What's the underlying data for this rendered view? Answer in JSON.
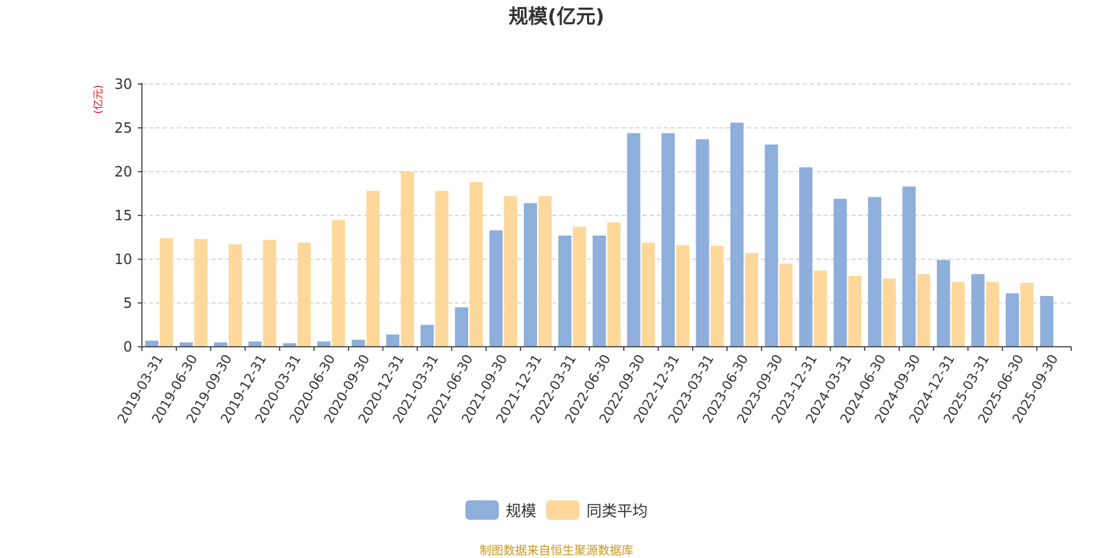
{
  "colors": {
    "series_a": "#8eaedb",
    "series_b": "#fdd89a",
    "axis": "#333333",
    "grid": "#c8c8c8",
    "ylabel": "#e0151b",
    "source": "#c8961e"
  },
  "legend": {
    "item_a": "规模",
    "item_b": "同类平均"
  },
  "source_note": "制图数据来自恒生聚源数据库",
  "chart_data": {
    "type": "bar",
    "title": "规模(亿元)",
    "xlabel": "",
    "ylabel": "(亿元)",
    "ylim": [
      0,
      30
    ],
    "yticks": [
      0,
      5,
      10,
      15,
      20,
      25,
      30
    ],
    "grid": true,
    "legend_position": "bottom-center",
    "categories": [
      "2019-03-31",
      "2019-06-30",
      "2019-09-30",
      "2019-12-31",
      "2020-03-31",
      "2020-06-30",
      "2020-09-30",
      "2020-12-31",
      "2021-03-31",
      "2021-06-30",
      "2021-09-30",
      "2021-12-31",
      "2022-03-31",
      "2022-06-30",
      "2022-09-30",
      "2022-12-31",
      "2023-03-31",
      "2023-06-30",
      "2023-09-30",
      "2023-12-31",
      "2024-03-31",
      "2024-06-30",
      "2024-09-30",
      "2024-12-31",
      "2025-03-31",
      "2025-06-30",
      "2025-09-30"
    ],
    "series": [
      {
        "name": "规模",
        "values": [
          0.7,
          0.5,
          0.5,
          0.6,
          0.4,
          0.6,
          0.8,
          1.4,
          2.5,
          4.5,
          13.3,
          16.4,
          12.7,
          12.7,
          24.4,
          24.4,
          23.7,
          25.6,
          23.1,
          20.5,
          16.9,
          17.1,
          18.3,
          9.9,
          8.3,
          6.1,
          5.8
        ]
      },
      {
        "name": "同类平均",
        "values": [
          12.4,
          12.3,
          11.7,
          12.2,
          11.9,
          14.5,
          17.8,
          20.0,
          17.8,
          18.8,
          17.2,
          17.2,
          13.7,
          14.2,
          11.9,
          11.6,
          11.5,
          10.7,
          9.5,
          8.7,
          8.1,
          7.8,
          8.3,
          7.4,
          7.4,
          7.3,
          null
        ]
      }
    ]
  }
}
